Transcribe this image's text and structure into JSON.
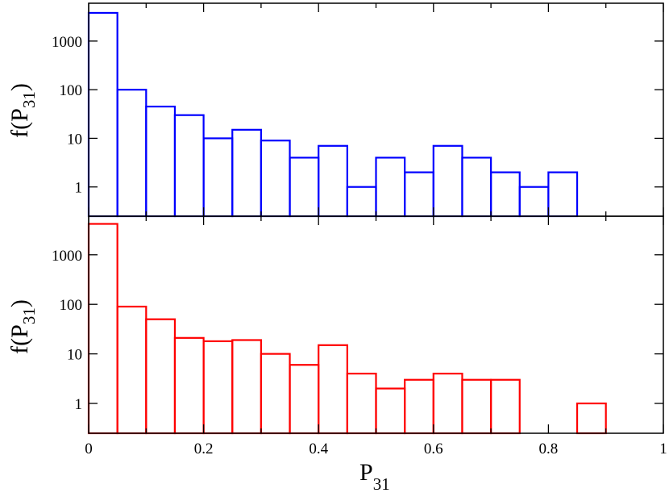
{
  "chart_data": [
    {
      "type": "bar",
      "scale": "log",
      "color": "#0000ff",
      "ylabel": "f(P",
      "ylabel_sub": "31",
      "ylabel_suffix": ")",
      "xlim": [
        0,
        1
      ],
      "ylim": [
        0.25,
        6000
      ],
      "yticks": [
        1,
        10,
        100,
        1000
      ],
      "ytick_labels": [
        "1",
        "10",
        "100",
        "1000"
      ],
      "bin_width": 0.05,
      "bins": [
        0,
        0.05,
        0.1,
        0.15,
        0.2,
        0.25,
        0.3,
        0.35,
        0.4,
        0.45,
        0.5,
        0.55,
        0.6,
        0.65,
        0.7,
        0.75,
        0.8
      ],
      "values": [
        3800,
        100,
        45,
        30,
        10,
        15,
        9,
        4,
        7,
        1,
        4,
        2,
        7,
        4,
        2,
        1,
        2
      ]
    },
    {
      "type": "bar",
      "scale": "log",
      "color": "#ff0000",
      "ylabel": "f(P",
      "ylabel_sub": "31",
      "ylabel_suffix": ")",
      "xlim": [
        0,
        1
      ],
      "ylim": [
        0.25,
        6000
      ],
      "yticks": [
        1,
        10,
        100,
        1000
      ],
      "ytick_labels": [
        "1",
        "10",
        "100",
        "1000"
      ],
      "bin_width": 0.05,
      "bins": [
        0,
        0.05,
        0.1,
        0.15,
        0.2,
        0.25,
        0.3,
        0.35,
        0.4,
        0.45,
        0.5,
        0.55,
        0.6,
        0.65,
        0.7,
        0.85
      ],
      "values": [
        4200,
        90,
        50,
        21,
        18,
        19,
        10,
        6,
        15,
        4,
        2,
        3,
        4,
        3,
        3,
        1
      ]
    }
  ],
  "x_axis": {
    "label": "P",
    "label_sub": "31",
    "ticks": [
      0,
      0.2,
      0.4,
      0.6,
      0.8,
      1
    ],
    "tick_labels": [
      "0",
      "0.2",
      "0.4",
      "0.6",
      "0.8",
      "1"
    ]
  }
}
